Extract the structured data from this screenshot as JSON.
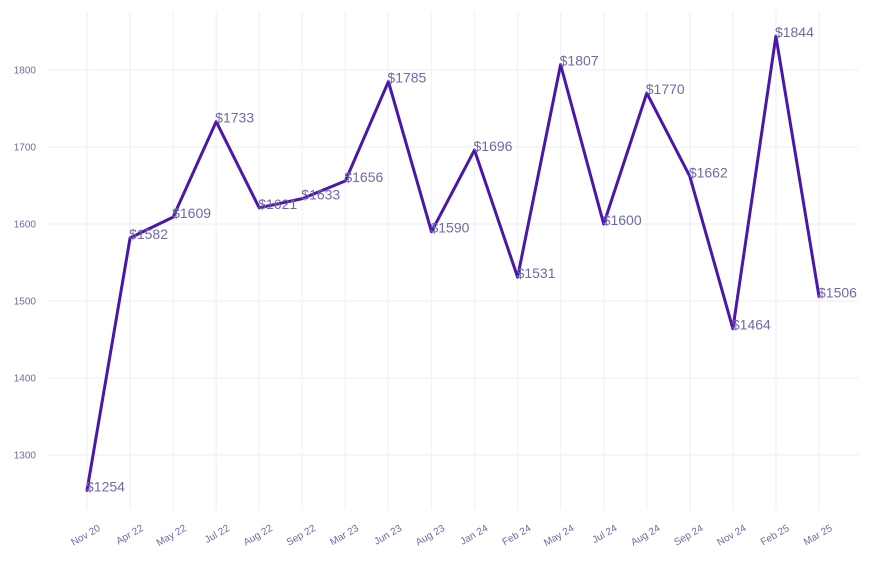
{
  "chart_data": {
    "type": "line",
    "title": "",
    "xlabel": "",
    "ylabel": "",
    "categories": [
      "Nov 20",
      "Apr 22",
      "May 22",
      "Jul 22",
      "Aug 22",
      "Sep 22",
      "Mar 23",
      "Jun 23",
      "Aug 23",
      "Jan 24",
      "Feb 24",
      "May 24",
      "Jul 24",
      "Aug 24",
      "Sep 24",
      "Nov 24",
      "Feb 25",
      "Mar 25"
    ],
    "values": [
      1254,
      1582,
      1609,
      1733,
      1621,
      1633,
      1656,
      1785,
      1590,
      1696,
      1531,
      1807,
      1600,
      1770,
      1662,
      1464,
      1844,
      1506
    ],
    "data_labels": [
      "$1254",
      "$1582",
      "$1609",
      "$1733",
      "$1621",
      "$1633",
      "$1656",
      "$1785",
      "$1590",
      "$1696",
      "$1531",
      "$1807",
      "$1600",
      "$1770",
      "$1662",
      "$1464",
      "$1844",
      "$1506"
    ],
    "yticks": [
      1300,
      1400,
      1500,
      1600,
      1700,
      1800
    ],
    "ylim": [
      1220,
      1870
    ],
    "grid": true,
    "legend": "none",
    "colors": {
      "line": "#4b17a8",
      "text": "#6e6aa8",
      "grid": "#f3f3f8"
    }
  }
}
